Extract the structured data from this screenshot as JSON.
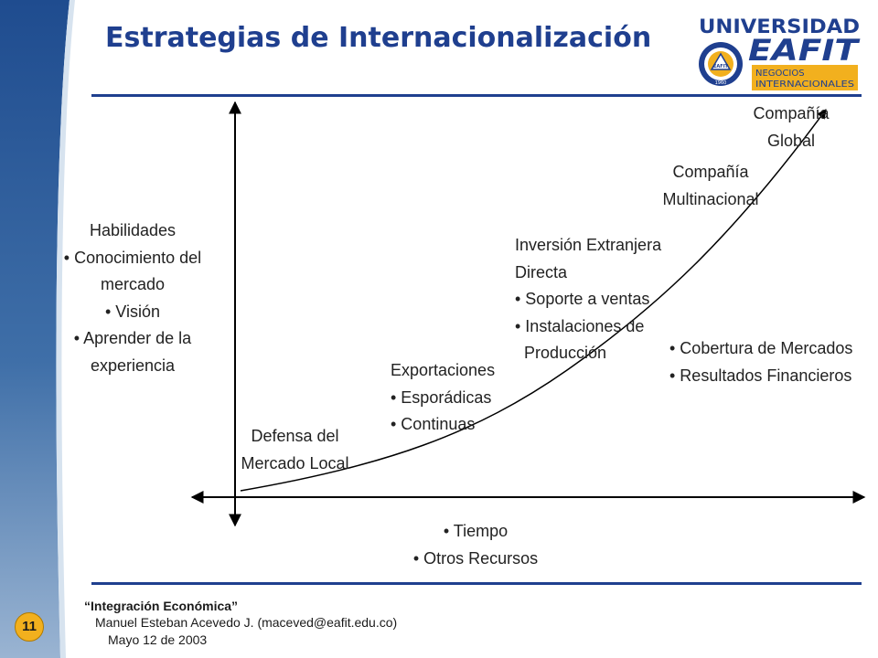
{
  "slide": {
    "title": "Estrategias de Internacionalización",
    "page_number": "11"
  },
  "logo": {
    "line1": "UNIVERSIDAD",
    "line2": "EAFIT",
    "line3": "NEGOCIOS",
    "line4": "INTERNACIONALES",
    "seal_text": "EAFIT",
    "seal_year": "1960",
    "colors": {
      "blue": "#1f3f8f",
      "gold": "#f2b01e"
    }
  },
  "diagram": {
    "left_label": {
      "heading": "Habilidades",
      "items": [
        "• Conocimiento del",
        "mercado",
        "• Visión",
        "• Aprender de la",
        "experiencia"
      ]
    },
    "bottom_label": [
      "• Tiempo",
      "• Otros Recursos"
    ],
    "right_label": [
      "• Cobertura de Mercados",
      "• Resultados Financieros"
    ],
    "stages": {
      "defensa": [
        "Defensa del",
        "Mercado Local"
      ],
      "exportaciones": [
        "Exportaciones",
        "• Esporádicas",
        "• Continuas"
      ],
      "inversion": [
        "Inversión Extranjera",
        "Directa",
        "• Soporte a ventas",
        "• Instalaciones de",
        "Producción"
      ],
      "multinacional": [
        "Compañía",
        "Multinacional"
      ],
      "global": [
        "Compañía",
        "Global"
      ]
    }
  },
  "footer": {
    "title": "“Integración Económica”",
    "author": "Manuel Esteban Acevedo J. (maceved@eafit.edu.co)",
    "date": "Mayo 12 de 2003"
  }
}
